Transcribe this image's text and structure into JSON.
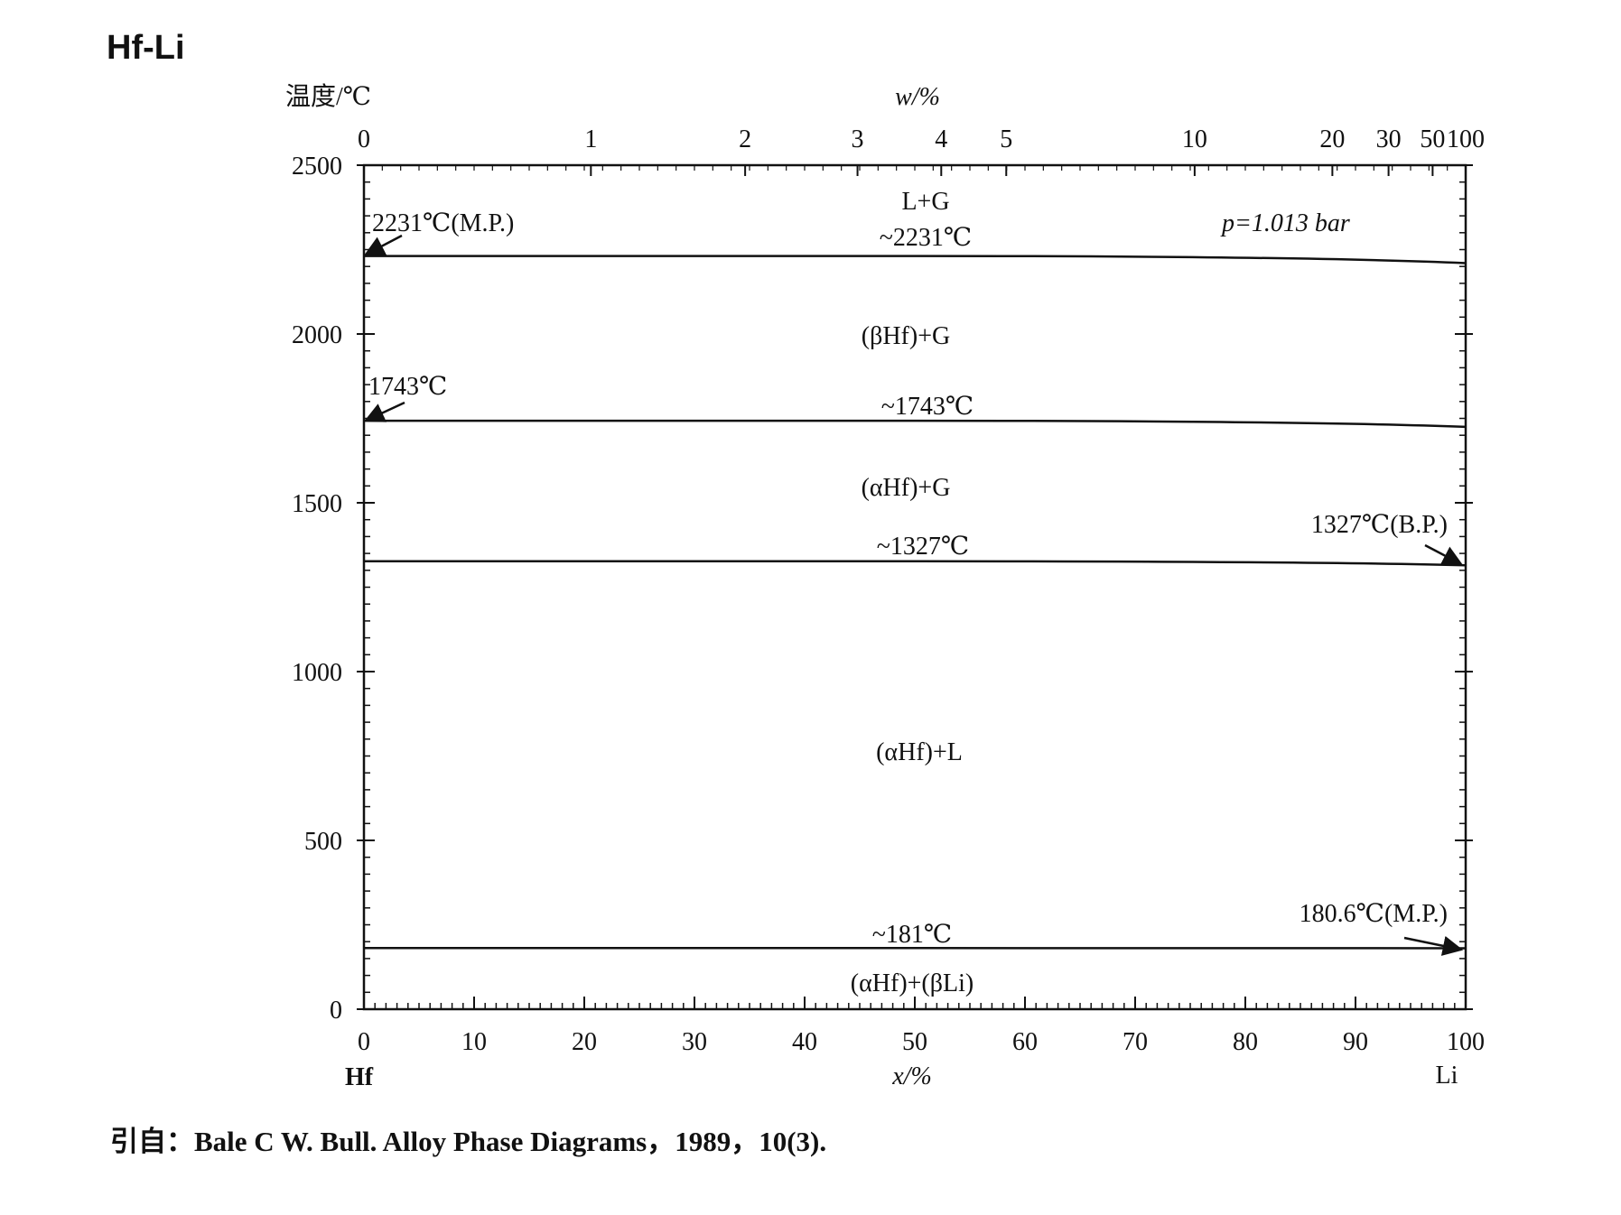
{
  "title": "Hf-Li",
  "source": "引自：Bale C W. Bull. Alloy Phase Diagrams，1989，10(3).",
  "chart_data": {
    "type": "line",
    "title": "Hf-Li",
    "ylabel": "温度/℃",
    "xlabel": "x/%",
    "top_axis_label": "w/%",
    "ylim": [
      0,
      2500
    ],
    "xlim": [
      0,
      100
    ],
    "yticks": [
      "0",
      "500",
      "1000",
      "1500",
      "2000",
      "2500"
    ],
    "xticks": [
      "0",
      "10",
      "20",
      "30",
      "40",
      "50",
      "60",
      "70",
      "80",
      "90",
      "100"
    ],
    "top_ticks": [
      {
        "label": "0",
        "x": 0
      },
      {
        "label": "1",
        "x": 20.6
      },
      {
        "label": "2",
        "x": 34.6
      },
      {
        "label": "3",
        "x": 44.8
      },
      {
        "label": "4",
        "x": 52.4
      },
      {
        "label": "5",
        "x": 58.3
      },
      {
        "label": "10",
        "x": 75.4
      },
      {
        "label": "20",
        "x": 87.9
      },
      {
        "label": "30",
        "x": 93.0
      },
      {
        "label": "50",
        "x": 97.0
      },
      {
        "label": "100",
        "x": 100
      }
    ],
    "element_left": "Hf",
    "element_right": "Li",
    "pressure": "p=1.013 bar",
    "series": [
      {
        "x": [
          0,
          50,
          100
        ],
        "y": [
          2231,
          2231,
          2210
        ]
      },
      {
        "x": [
          0,
          50,
          100
        ],
        "y": [
          1743,
          1743,
          1725
        ]
      },
      {
        "x": [
          0,
          50,
          100
        ],
        "y": [
          1327,
          1327,
          1315
        ]
      },
      {
        "x": [
          0,
          50,
          100
        ],
        "y": [
          181,
          181,
          180.6
        ]
      }
    ],
    "isotherm_labels": [
      "~2231℃",
      "~1743℃",
      "~1327℃",
      "~181℃"
    ],
    "region_labels": [
      "L+G",
      "(βHf)+G",
      "(αHf)+G",
      "(αHf)+L",
      "(αHf)+(βLi)"
    ],
    "annotations": [
      "2231℃(M.P.)",
      "1743℃",
      "1327℃(B.P.)",
      "180.6℃(M.P.)"
    ]
  }
}
